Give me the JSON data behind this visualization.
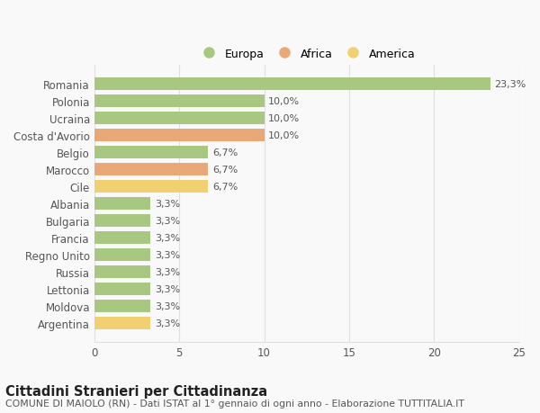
{
  "countries": [
    "Romania",
    "Polonia",
    "Ucraina",
    "Costa d'Avorio",
    "Belgio",
    "Marocco",
    "Cile",
    "Albania",
    "Bulgaria",
    "Francia",
    "Regno Unito",
    "Russia",
    "Lettonia",
    "Moldova",
    "Argentina"
  ],
  "values": [
    23.3,
    10.0,
    10.0,
    10.0,
    6.7,
    6.7,
    6.7,
    3.3,
    3.3,
    3.3,
    3.3,
    3.3,
    3.3,
    3.3,
    3.3
  ],
  "labels": [
    "23,3%",
    "10,0%",
    "10,0%",
    "10,0%",
    "6,7%",
    "6,7%",
    "6,7%",
    "3,3%",
    "3,3%",
    "3,3%",
    "3,3%",
    "3,3%",
    "3,3%",
    "3,3%",
    "3,3%"
  ],
  "continent": [
    "Europa",
    "Europa",
    "Europa",
    "Africa",
    "Europa",
    "Africa",
    "America",
    "Europa",
    "Europa",
    "Europa",
    "Europa",
    "Europa",
    "Europa",
    "Europa",
    "America"
  ],
  "colors": {
    "Europa": "#a8c882",
    "Africa": "#e8a878",
    "America": "#f0d070"
  },
  "legend_order": [
    "Europa",
    "Africa",
    "America"
  ],
  "title": "Cittadini Stranieri per Cittadinanza",
  "subtitle": "COMUNE DI MAIOLO (RN) - Dati ISTAT al 1° gennaio di ogni anno - Elaborazione TUTTITALIA.IT",
  "xlim": [
    0,
    25
  ],
  "xticks": [
    0,
    5,
    10,
    15,
    20,
    25
  ],
  "background_color": "#f9f9f9",
  "grid_color": "#e0e0e0",
  "bar_height": 0.72,
  "title_fontsize": 10.5,
  "subtitle_fontsize": 7.8,
  "tick_fontsize": 8.5,
  "label_fontsize": 8.0,
  "legend_fontsize": 9.0
}
